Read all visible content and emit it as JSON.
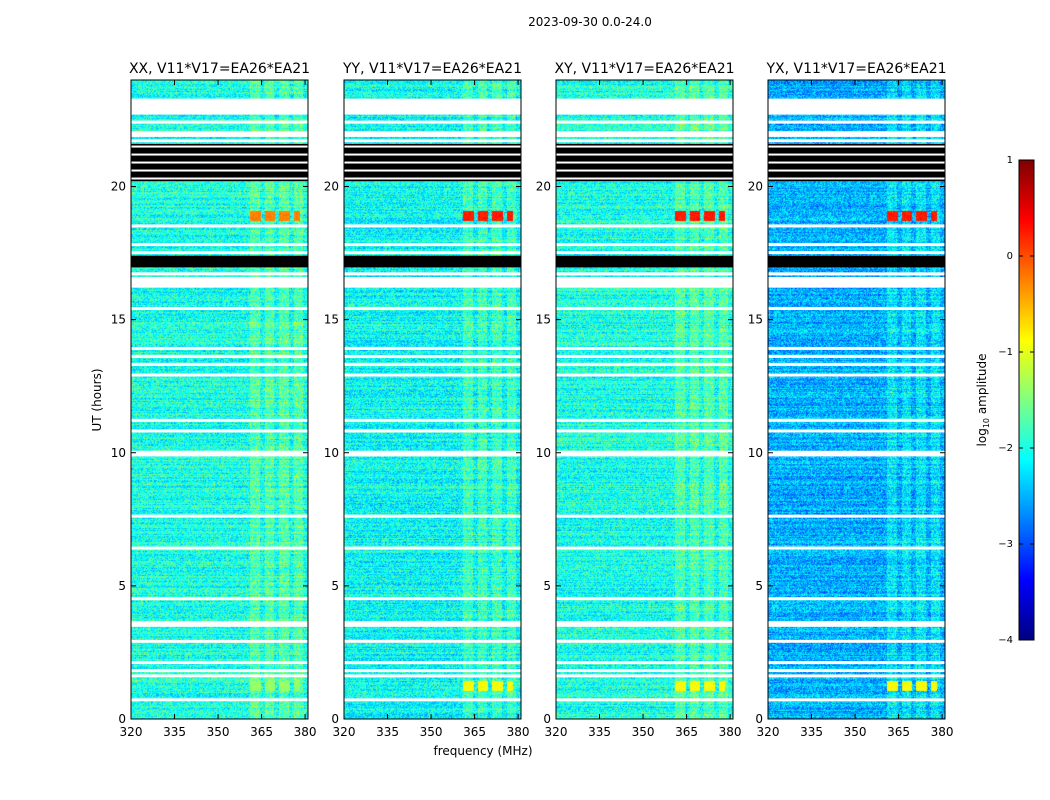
{
  "figure_title": "2023-09-30 0.0-24.0",
  "chart_data": {
    "type": "heatmap",
    "title": "2023-09-30 0.0-24.0",
    "xlabel": "frequency (MHz)",
    "ylabel": "UT (hours)",
    "xlim": [
      320,
      381
    ],
    "ylim": [
      0,
      24
    ],
    "xticks": [
      320,
      335,
      350,
      365,
      380
    ],
    "yticks": [
      0,
      5,
      10,
      15,
      20
    ],
    "panels": [
      {
        "title": "XX, V11*V17=EA26*EA21",
        "base": 0.4
      },
      {
        "title": "YY, V11*V17=EA26*EA21",
        "base": 0.38
      },
      {
        "title": "XY, V11*V17=EA26*EA21",
        "base": 0.4
      },
      {
        "title": "YX, V11*V17=EA26*EA21",
        "base": 0.3
      }
    ],
    "rfi_freq_range_mhz": [
      361,
      381
    ],
    "rfi_bursts": [
      {
        "ut": 18.9,
        "level": 0.85
      },
      {
        "ut": 1.25,
        "level": 0.62
      }
    ],
    "flagged_rows_ut": [
      23.2,
      22.4,
      22.0,
      21.9,
      21.7,
      18.5,
      17.8,
      17.5,
      16.7,
      15.4,
      13.9,
      13.6,
      13.3,
      12.9,
      11.2,
      10.8,
      10.0,
      9.9,
      7.6,
      6.4,
      4.5,
      3.6,
      3.5,
      2.9,
      2.1,
      1.8,
      1.6,
      0.7
    ],
    "no_data_rows_ut": [
      20.3,
      20.6,
      20.9,
      21.2,
      21.5,
      17.3,
      17.0
    ],
    "colorbar": {
      "label": "log10 amplitude",
      "label_main": "log",
      "label_sub": "10",
      "label_rest": " amplitude",
      "min": -4,
      "max": 1,
      "ticks": [
        1,
        0,
        -1,
        -2,
        -3,
        -4
      ],
      "tick_labels": [
        "1",
        "0",
        "−1",
        "−2",
        "−3",
        "−4"
      ],
      "colormap": "jet",
      "stops": [
        "#00007f",
        "#0000ff",
        "#0080ff",
        "#00ffff",
        "#80ff80",
        "#ffff00",
        "#ff8000",
        "#ff0000",
        "#7f0000"
      ]
    }
  }
}
